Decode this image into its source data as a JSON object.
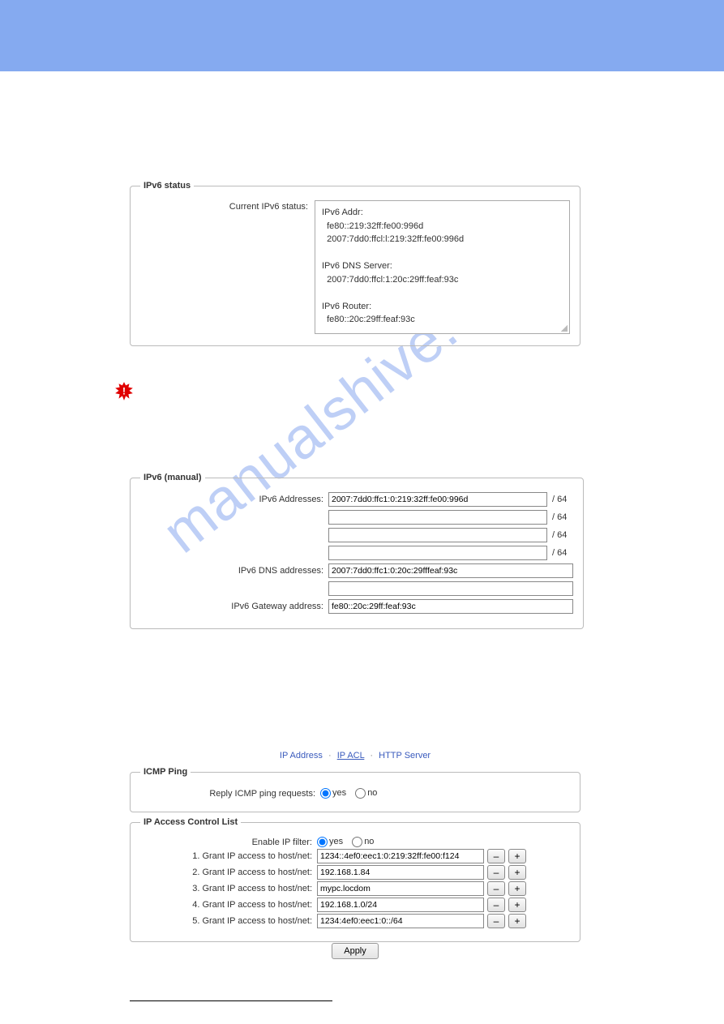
{
  "banner": {
    "color": "#85aaf0"
  },
  "status": {
    "legend": "IPv6 status",
    "label": "Current IPv6 status:",
    "lines": "IPv6 Addr:\n  fe80::219:32ff:fe00:996d\n  2007:7dd0:ffcl:l:219:32ff:fe00:996d\n\nIPv6 DNS Server:\n  2007:7dd0:ffcl:1:20c:29ff:feaf:93c\n\nIPv6 Router:\n  fe80::20c:29ff:feaf:93c"
  },
  "manual": {
    "legend": "IPv6 (manual)",
    "addr_label": "IPv6 Addresses:",
    "addrs": [
      "2007:7dd0:ffc1:0:219:32ff:fe00:996d",
      "",
      "",
      ""
    ],
    "addr_suffix": "/ 64",
    "dns_label": "IPv6 DNS addresses:",
    "dns": [
      "2007:7dd0:ffc1:0:20c:29fffeaf:93c",
      ""
    ],
    "gw_label": "IPv6 Gateway address:",
    "gw": "fe80::20c:29ff:feaf:93c"
  },
  "nav": {
    "ipaddress": "IP Address",
    "ipacl": "IP ACL",
    "httpserver": "HTTP Server",
    "sep": "·"
  },
  "icmp": {
    "legend": "ICMP Ping",
    "label": "Reply ICMP ping requests:",
    "yes": "yes",
    "no": "no"
  },
  "acl": {
    "legend": "IP Access Control List",
    "enable_label": "Enable IP filter:",
    "yes": "yes",
    "no": "no",
    "rows": [
      {
        "label": "1. Grant IP access to host/net:",
        "value": "1234::4ef0:eec1:0:219:32ff:fe00:f124"
      },
      {
        "label": "2. Grant IP access to host/net:",
        "value": "192.168.1.84"
      },
      {
        "label": "3. Grant IP access to host/net:",
        "value": "mypc.locdom"
      },
      {
        "label": "4. Grant IP access to host/net:",
        "value": "192.168.1.0/24"
      },
      {
        "label": "5. Grant IP access to host/net:",
        "value": "1234:4ef0:eec1:0::/64"
      }
    ],
    "minus": "–",
    "plus": "+"
  },
  "apply": {
    "label": "Apply"
  },
  "watermark": {
    "text": "manualshive.com",
    "color": "#8aa8ef"
  }
}
